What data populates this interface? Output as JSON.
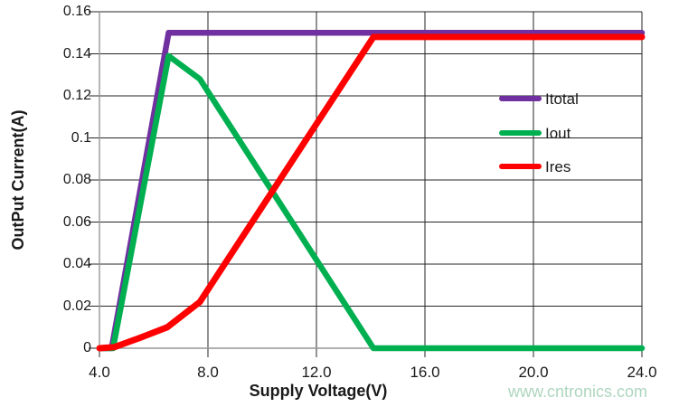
{
  "watermark": {
    "text": "www.cntronics.com",
    "color": "#aed6be"
  },
  "chart_data": {
    "type": "line",
    "title": "",
    "xlabel": "Supply Voltage(V)",
    "ylabel": "OutPut Current(A)",
    "xlim": [
      4.0,
      24.0
    ],
    "ylim": [
      0,
      0.16
    ],
    "grid": true,
    "legend_position": "inside-right",
    "x_ticks": [
      "4.0",
      "8.0",
      "12.0",
      "16.0",
      "20.0",
      "24.0"
    ],
    "y_ticks": [
      "0.16",
      "0.14",
      "0.12",
      "0.1",
      "0.08",
      "0.06",
      "0.04",
      "0.02",
      "0"
    ],
    "axis_color": "#969696",
    "gridline_color": "#262626",
    "series": [
      {
        "name": "Itotal",
        "color": "#7030A0",
        "width": 6.5,
        "x": [
          4.0,
          4.45,
          6.55,
          24.0
        ],
        "y": [
          0,
          0,
          0.15,
          0.15
        ]
      },
      {
        "name": "Iout",
        "color": "#00B050",
        "width": 6.5,
        "x": [
          4.0,
          4.5,
          6.55,
          7.7,
          14.1,
          24.0
        ],
        "y": [
          0,
          0,
          0.139,
          0.128,
          0,
          0
        ]
      },
      {
        "name": "Ires",
        "color": "#FF0000",
        "width": 7,
        "x": [
          4.0,
          4.55,
          5.5,
          6.5,
          7.7,
          14.1,
          24.0
        ],
        "y": [
          0,
          0.0005,
          0.005,
          0.01,
          0.022,
          0.148,
          0.148
        ]
      }
    ]
  }
}
